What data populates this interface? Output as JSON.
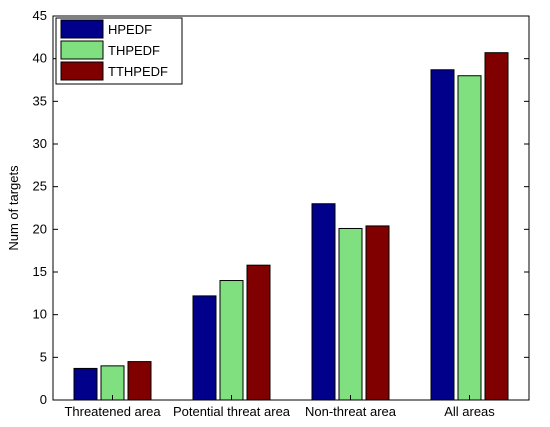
{
  "chart_data": {
    "type": "bar",
    "categories": [
      "Threatened area",
      "Potential threat area",
      "Non-threat area",
      "All areas"
    ],
    "series": [
      {
        "name": "HPEDF",
        "values": [
          3.7,
          12.2,
          23.0,
          38.7
        ],
        "color": "#00008b"
      },
      {
        "name": "THPEDF",
        "values": [
          4.0,
          14.0,
          20.1,
          38.0
        ],
        "color": "#80e080"
      },
      {
        "name": "TTHPEDF",
        "values": [
          4.5,
          15.8,
          20.4,
          40.7
        ],
        "color": "#800000"
      }
    ],
    "title": "",
    "xlabel": "",
    "ylabel": "Num of targets",
    "ylim": [
      0,
      45
    ],
    "yticks": [
      0,
      5,
      10,
      15,
      20,
      25,
      30,
      35,
      40,
      45
    ],
    "grid": false,
    "legend_position": "top-left"
  }
}
